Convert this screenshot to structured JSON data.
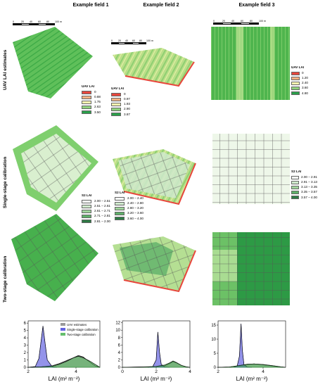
{
  "columns": [
    {
      "title": "Example field 1"
    },
    {
      "title": "Example field 2"
    },
    {
      "title": "Example field 3"
    }
  ],
  "rows": [
    {
      "title": "UAV LAI estimates"
    },
    {
      "title": "Single-stage calibration"
    },
    {
      "title": "Two-stage calibration"
    }
  ],
  "scalebar": {
    "labels": [
      "0",
      "20",
      "40",
      "60",
      "80",
      "100 m"
    ]
  },
  "legends": {
    "uav_f1": {
      "title": "UAV LAI",
      "labels": [
        "0",
        "0.88",
        "1.75",
        "2.63",
        "3.50"
      ],
      "colors": [
        "#e8463c",
        "#f4b183",
        "#f7f3b0",
        "#8fd17d",
        "#2aa04a"
      ]
    },
    "uav_f2": {
      "title": "UAV LAI",
      "labels": [
        "0",
        "0.97",
        "1.93",
        "2.90",
        "3.87"
      ],
      "colors": [
        "#e8463c",
        "#f4b183",
        "#f7f3b0",
        "#8fd17d",
        "#2aa04a"
      ]
    },
    "uav_f3": {
      "title": "UAV LAI",
      "labels": [
        "0",
        "1.20",
        "2.40",
        "3.60",
        "4.80"
      ],
      "colors": [
        "#e8463c",
        "#f4b183",
        "#f7f3b0",
        "#8fd17d",
        "#2aa04a"
      ]
    },
    "s2_f1": {
      "title": "S2 LAI",
      "labels": [
        "2.00 – 2.51",
        "2.51 – 2.61",
        "2.61 – 2.71",
        "2.71 – 2.81",
        "2.81 – 2.00"
      ],
      "colors": [
        "#f7fbf7",
        "#cfe9cc",
        "#9fd39b",
        "#5fb06a",
        "#2d7a44"
      ]
    },
    "s2_f2": {
      "title": "S2 LAI",
      "labels": [
        "2.00 – 2.40",
        "2.40 – 2.80",
        "2.80 – 3.20",
        "3.20 – 3.60",
        "3.60 – 4.00"
      ],
      "colors": [
        "#f7fbf7",
        "#cfe9cc",
        "#9fd39b",
        "#5fb06a",
        "#2d7a44"
      ]
    },
    "s2_f3": {
      "title": "S2 LAI",
      "labels": [
        "2.00 – 2.91",
        "2.91 – 3.13",
        "3.13 – 3.35",
        "3.35 – 3.57",
        "3.57 – 4.00"
      ],
      "colors": [
        "#f7fbf7",
        "#cfe9cc",
        "#9fd39b",
        "#5fb06a",
        "#2d7a44"
      ]
    }
  },
  "chart_data": [
    {
      "type": "area",
      "xlabel": "LAI (m² m⁻²)",
      "ylabel": "",
      "xlim": [
        2,
        5
      ],
      "ylim": [
        0,
        6.3
      ],
      "x_ticks": [
        2,
        4
      ],
      "y_ticks": [
        0,
        1,
        2,
        3,
        4,
        5,
        6
      ],
      "legend": {
        "placement": "top-right",
        "entries": [
          "UAV estimates",
          "Single-stage calibration",
          "Two-stage calibration"
        ]
      },
      "series": [
        {
          "name": "UAV estimates",
          "color": "#7f7f7f",
          "x": [
            2.0,
            2.5,
            3.0,
            3.3,
            3.6,
            3.9,
            4.1,
            4.3,
            4.5,
            4.8,
            5.0
          ],
          "y": [
            0,
            0.05,
            0.2,
            0.5,
            0.9,
            1.3,
            1.6,
            1.4,
            0.9,
            0.2,
            0
          ]
        },
        {
          "name": "Single-stage calibration",
          "color": "#3b3bd9",
          "x": [
            2.0,
            2.3,
            2.45,
            2.55,
            2.62,
            2.7,
            2.8,
            3.0,
            3.2
          ],
          "y": [
            0,
            0.1,
            1.2,
            3.8,
            5.6,
            3.5,
            1.0,
            0.1,
            0
          ]
        },
        {
          "name": "Two-stage calibration",
          "color": "#3fae49",
          "x": [
            2.0,
            2.5,
            3.0,
            3.3,
            3.6,
            3.9,
            4.1,
            4.3,
            4.6,
            4.9,
            5.0
          ],
          "y": [
            0,
            0.05,
            0.15,
            0.4,
            0.8,
            1.3,
            1.5,
            1.3,
            0.8,
            0.2,
            0
          ]
        }
      ]
    },
    {
      "type": "area",
      "xlabel": "LAI (m² m⁻²)",
      "ylabel": "",
      "xlim": [
        0,
        4
      ],
      "ylim": [
        0,
        12.5
      ],
      "x_ticks": [
        0,
        2,
        4
      ],
      "y_ticks": [
        0,
        2,
        4,
        6,
        8,
        10,
        12
      ],
      "series": [
        {
          "name": "UAV estimates",
          "color": "#7f7f7f",
          "x": [
            0,
            0.5,
            1.0,
            1.5,
            2.0,
            2.5,
            2.8,
            3.0,
            3.2,
            3.5,
            3.8,
            4.0
          ],
          "y": [
            0,
            0.05,
            0.1,
            0.15,
            0.2,
            0.4,
            1.0,
            1.5,
            1.2,
            0.5,
            0.1,
            0
          ]
        },
        {
          "name": "Single-stage calibration",
          "color": "#3b3bd9",
          "x": [
            1.5,
            1.8,
            2.0,
            2.1,
            2.2,
            2.3,
            2.5,
            2.8
          ],
          "y": [
            0,
            0.2,
            2.0,
            9.5,
            4.0,
            0.8,
            0.1,
            0
          ]
        },
        {
          "name": "Two-stage calibration",
          "color": "#3fae49",
          "x": [
            0,
            1.0,
            1.5,
            2.0,
            2.5,
            2.8,
            3.0,
            3.2,
            3.5,
            3.8,
            4.0
          ],
          "y": [
            0,
            0.05,
            0.1,
            0.25,
            0.6,
            1.2,
            1.7,
            1.3,
            0.5,
            0.1,
            0
          ]
        }
      ]
    },
    {
      "type": "area",
      "xlabel": "LAI (m² m⁻²)",
      "ylabel": "",
      "xlim": [
        2,
        5
      ],
      "ylim": [
        0,
        16.5
      ],
      "x_ticks": [
        2,
        4
      ],
      "y_ticks": [
        0,
        5,
        10,
        15
      ],
      "series": [
        {
          "name": "UAV estimates",
          "color": "#7f7f7f",
          "x": [
            2.0,
            2.5,
            3.0,
            3.3,
            3.6,
            4.0,
            4.4,
            4.8,
            5.0
          ],
          "y": [
            0,
            0.1,
            0.6,
            1.0,
            1.2,
            0.9,
            0.5,
            0.1,
            0
          ]
        },
        {
          "name": "Single-stage calibration",
          "color": "#3b3bd9",
          "x": [
            2.7,
            2.85,
            2.95,
            3.02,
            3.08,
            3.15,
            3.3,
            3.5
          ],
          "y": [
            0,
            0.5,
            4.0,
            15.5,
            6.0,
            1.0,
            0.1,
            0
          ]
        },
        {
          "name": "Two-stage calibration",
          "color": "#3fae49",
          "x": [
            2.0,
            2.5,
            3.0,
            3.3,
            3.6,
            4.0,
            4.4,
            4.8,
            5.0
          ],
          "y": [
            0,
            0.1,
            0.7,
            1.1,
            1.2,
            1.0,
            0.6,
            0.15,
            0
          ]
        }
      ]
    }
  ]
}
